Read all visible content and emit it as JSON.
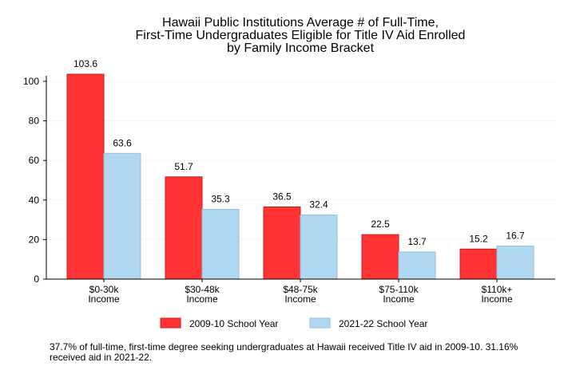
{
  "chart_data": {
    "type": "bar",
    "title_lines": [
      "Hawaii Public Institutions Average # of Full-Time,",
      "First-Time Undergraduates Eligible for Title IV Aid Enrolled",
      "by Family Income Bracket"
    ],
    "categories": [
      [
        "$0-30k",
        "Income"
      ],
      [
        "$30-48k",
        "Income"
      ],
      [
        "$48-75k",
        "Income"
      ],
      [
        "$75-110k",
        "Income"
      ],
      [
        "$110k+",
        "Income"
      ]
    ],
    "series": [
      {
        "name": "2009-10 School Year",
        "color": "#ff3333",
        "values": [
          103.6,
          51.7,
          36.5,
          22.5,
          15.2
        ],
        "labels": [
          "103.6",
          "51.7",
          "36.5",
          "22.5",
          "15.2"
        ]
      },
      {
        "name": "2021-22 School Year",
        "color": "#b0d8f0",
        "values": [
          63.6,
          35.3,
          32.4,
          13.7,
          16.7
        ],
        "labels": [
          "63.6",
          "35.3",
          "32.4",
          "13.7",
          "16.7"
        ]
      }
    ],
    "ylim": [
      0,
      100
    ],
    "yticks": [
      "0",
      "20",
      "40",
      "60",
      "80",
      "100"
    ],
    "grid": true,
    "legend_position": "bottom"
  },
  "note": "37.7% of full-time, first-time degree seeking undergraduates at Hawaii received Title IV aid in 2009-10. 31.16% received aid in 2021-22."
}
